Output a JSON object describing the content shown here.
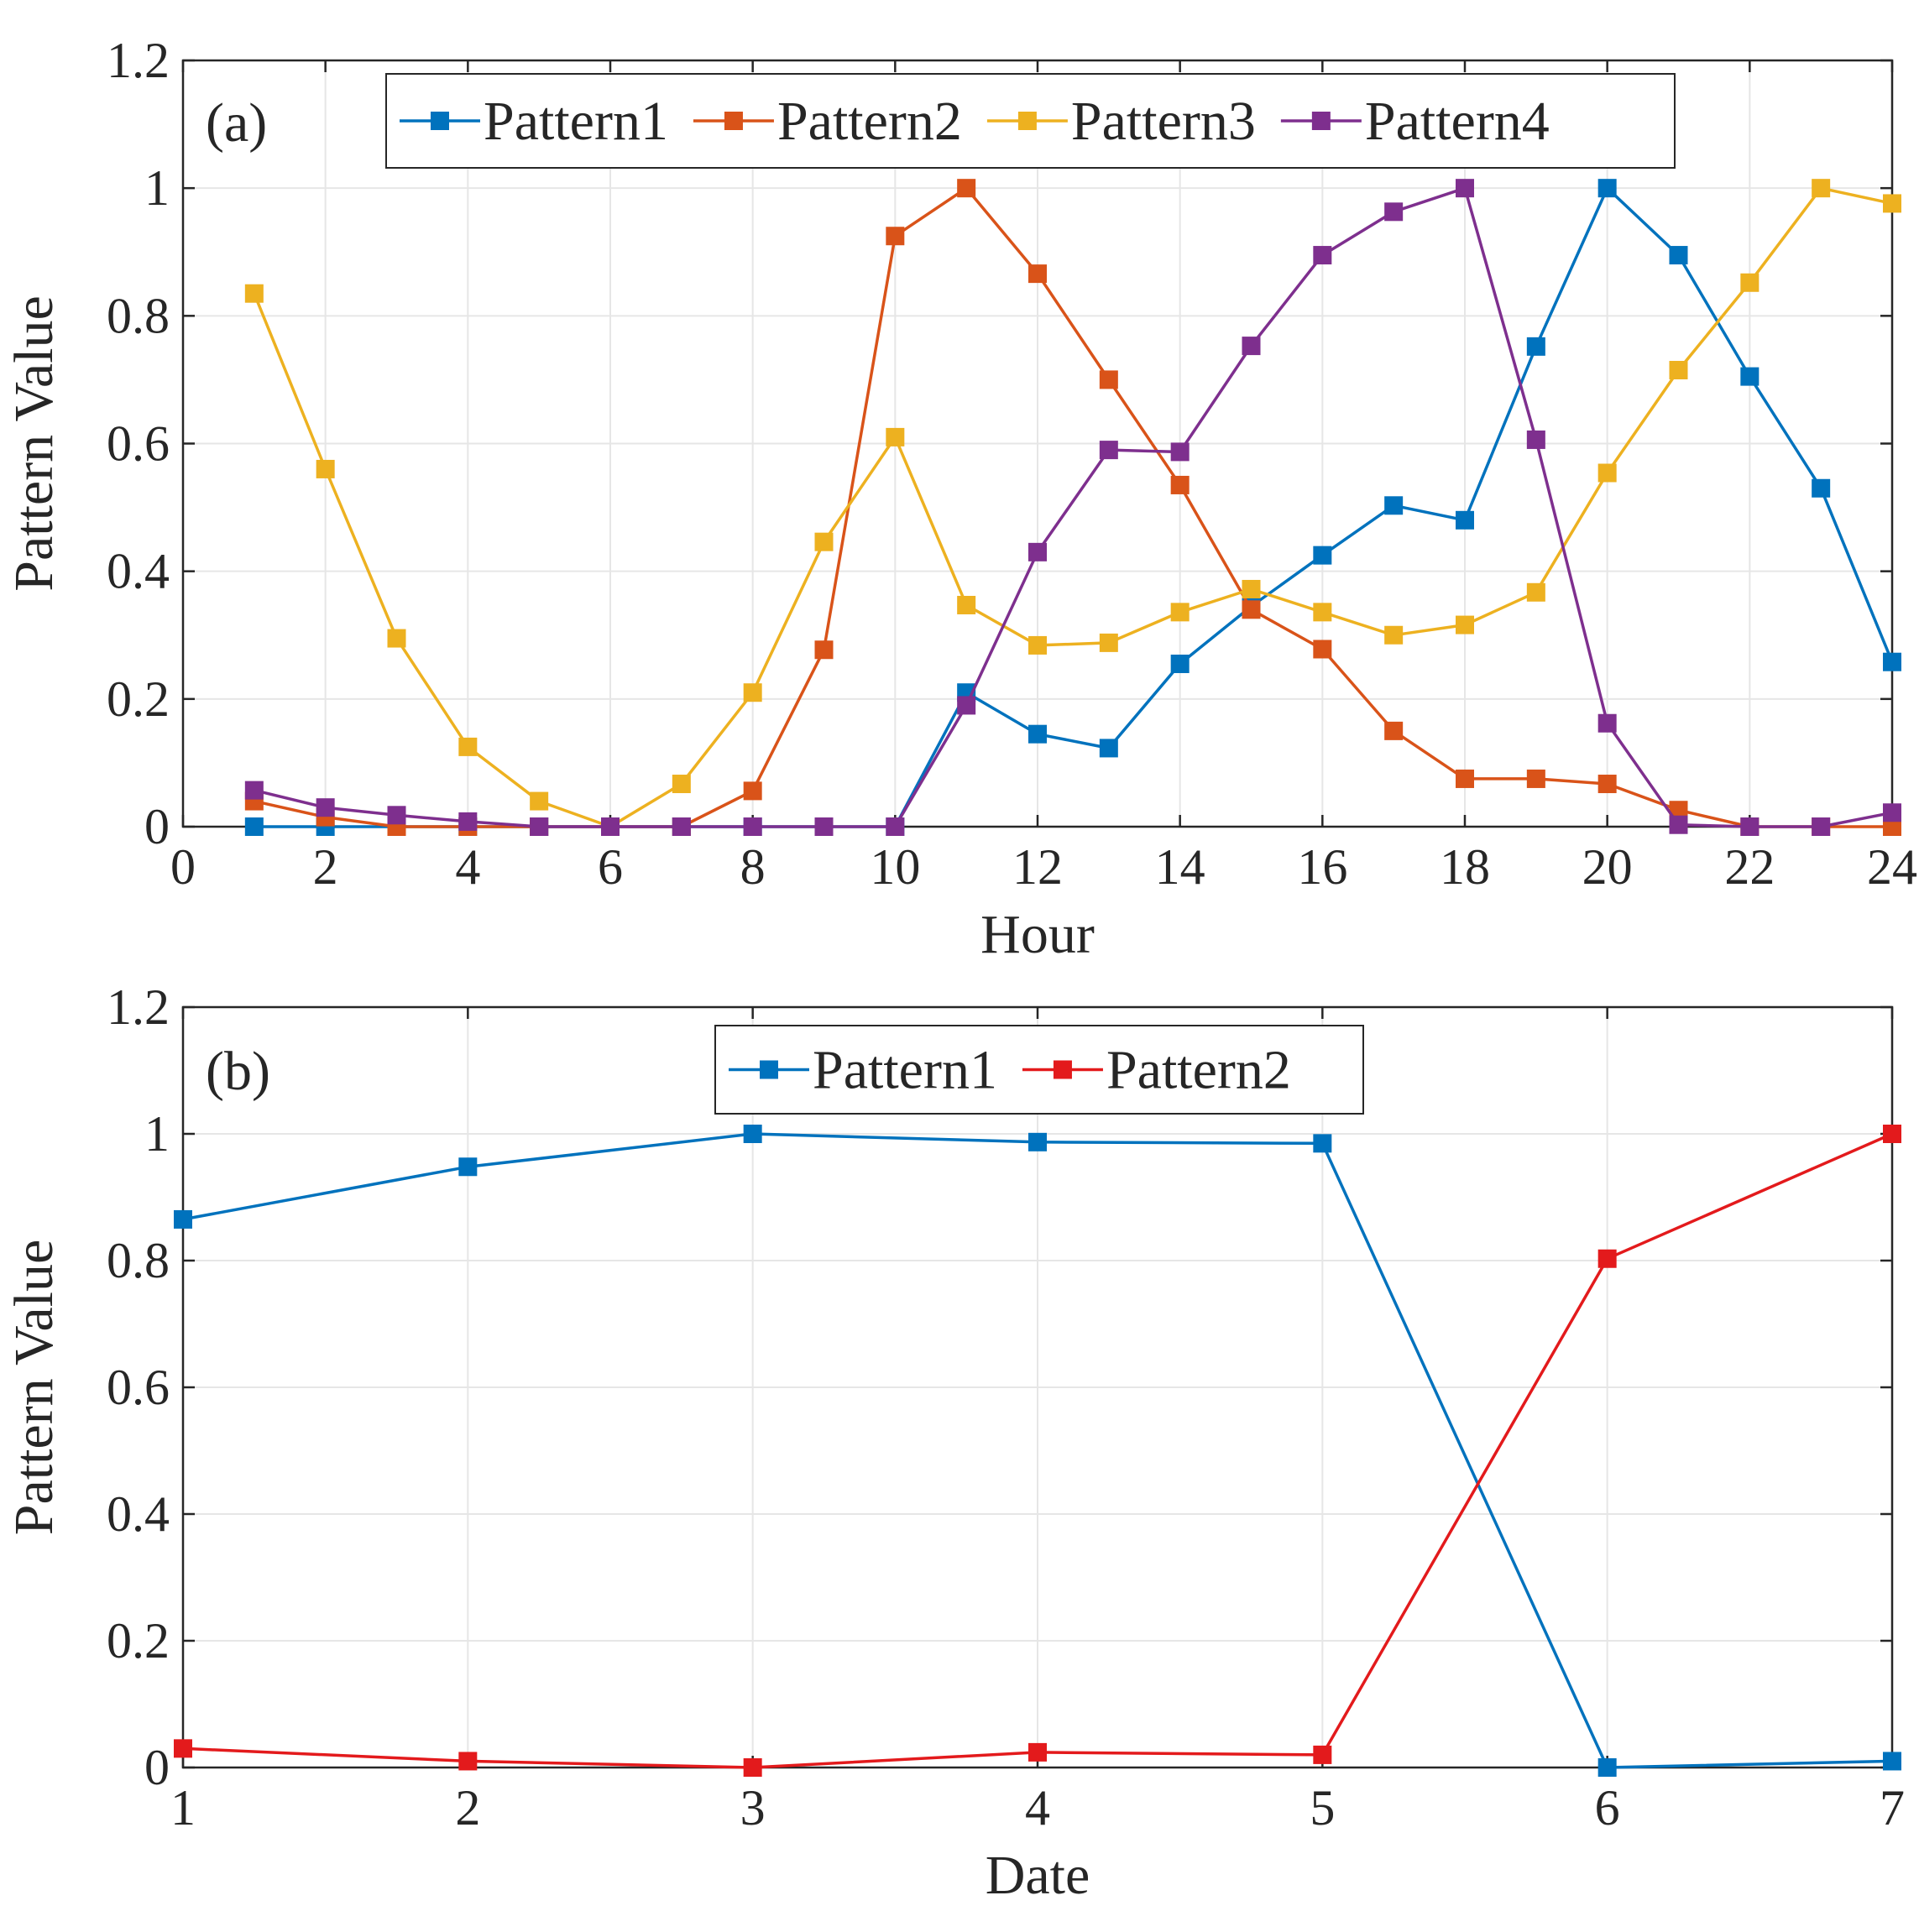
{
  "colors": {
    "blue": "#0072BD",
    "orange": "#D95319",
    "yellow": "#EDB120",
    "purple": "#7E2F8E",
    "red": "#E31A1C",
    "grid": "#E6E6E6",
    "axis": "#262626"
  },
  "chart_data": [
    {
      "type": "line",
      "panel_label": "(a)",
      "xlabel": "Hour",
      "ylabel": "Pattern Value",
      "xlim": [
        0,
        24
      ],
      "ylim": [
        0,
        1.2
      ],
      "xticks": [
        0,
        2,
        4,
        6,
        8,
        10,
        12,
        14,
        16,
        18,
        20,
        22,
        24
      ],
      "yticks": [
        0,
        0.2,
        0.4,
        0.6,
        0.8,
        1,
        1.2
      ],
      "x": [
        1,
        2,
        3,
        4,
        5,
        6,
        7,
        8,
        9,
        10,
        11,
        12,
        13,
        14,
        15,
        16,
        17,
        18,
        19,
        20,
        21,
        22,
        23,
        24
      ],
      "grid": true,
      "legend_position": "top-center",
      "series": [
        {
          "name": "Pattern1",
          "color": "#0072BD",
          "values": [
            0,
            0,
            0,
            0,
            0,
            0,
            0,
            0,
            0,
            0,
            0.21,
            0.145,
            0.123,
            0.255,
            0.345,
            0.425,
            0.503,
            0.48,
            0.752,
            1.0,
            0.895,
            0.705,
            0.53,
            0.258
          ]
        },
        {
          "name": "Pattern2",
          "color": "#D95319",
          "values": [
            0.04,
            0.015,
            0,
            0,
            0,
            0,
            0,
            0.056,
            0.277,
            0.925,
            1.0,
            0.866,
            0.7,
            0.535,
            0.34,
            0.278,
            0.15,
            0.075,
            0.075,
            0.067,
            0.026,
            0,
            0,
            0
          ]
        },
        {
          "name": "Pattern3",
          "color": "#EDB120",
          "values": [
            0.835,
            0.56,
            0.295,
            0.125,
            0.04,
            0,
            0.067,
            0.21,
            0.446,
            0.61,
            0.347,
            0.284,
            0.288,
            0.336,
            0.372,
            0.336,
            0.3,
            0.316,
            0.367,
            0.554,
            0.715,
            0.852,
            1.0,
            0.976
          ]
        },
        {
          "name": "Pattern4",
          "color": "#7E2F8E",
          "values": [
            0.057,
            0.03,
            0.018,
            0.008,
            0,
            0,
            0,
            0,
            0,
            0,
            0.19,
            0.43,
            0.59,
            0.587,
            0.753,
            0.895,
            0.963,
            1.0,
            0.606,
            0.162,
            0.003,
            0,
            0,
            0.022
          ]
        }
      ]
    },
    {
      "type": "line",
      "panel_label": "(b)",
      "xlabel": "Date",
      "ylabel": "Pattern Value",
      "xlim": [
        1,
        7
      ],
      "ylim": [
        0,
        1.2
      ],
      "xticks": [
        1,
        2,
        3,
        4,
        5,
        6,
        7
      ],
      "yticks": [
        0,
        0.2,
        0.4,
        0.6,
        0.8,
        1,
        1.2
      ],
      "x": [
        1,
        2,
        3,
        4,
        5,
        6,
        7
      ],
      "grid": true,
      "legend_position": "top-center",
      "series": [
        {
          "name": "Pattern1",
          "color": "#0072BD",
          "values": [
            0.865,
            0.948,
            1.0,
            0.987,
            0.985,
            0,
            0.01
          ]
        },
        {
          "name": "Pattern2",
          "color": "#E31A1C",
          "values": [
            0.03,
            0.01,
            0,
            0.024,
            0.02,
            0.803,
            1.0
          ]
        }
      ]
    }
  ]
}
